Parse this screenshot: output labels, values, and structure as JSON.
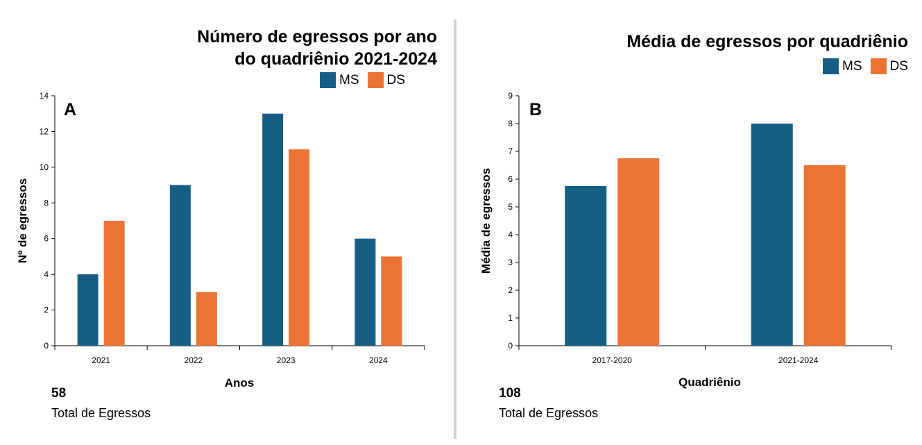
{
  "colors": {
    "ms": "#175e85",
    "ds": "#eb7434",
    "axis": "#000000"
  },
  "chart_data": [
    {
      "type": "bar",
      "panel_letter": "A",
      "title_lines": [
        "Número de egressos por ano",
        "do quadriênio 2021-2024"
      ],
      "xlabel": "Anos",
      "ylabel": "Nº de egressos",
      "categories": [
        "2021",
        "2022",
        "2023",
        "2024"
      ],
      "ylim": [
        0,
        14
      ],
      "yticks": [
        0,
        2,
        4,
        6,
        8,
        10,
        12,
        14
      ],
      "series": [
        {
          "name": "MS",
          "values": [
            4,
            9,
            13,
            6
          ]
        },
        {
          "name": "DS",
          "values": [
            7,
            3,
            11,
            5
          ]
        }
      ],
      "legend": [
        "MS",
        "DS"
      ],
      "total_value": "58",
      "total_label": "Total de Egressos"
    },
    {
      "type": "bar",
      "panel_letter": "B",
      "title_lines": [
        "Média de egressos por quadriênio"
      ],
      "xlabel": "Quadriênio",
      "ylabel": "Média de egressos",
      "categories": [
        "2017-2020",
        "2021-2024"
      ],
      "ylim": [
        0,
        9
      ],
      "yticks": [
        0,
        1,
        2,
        3,
        4,
        5,
        6,
        7,
        8,
        9
      ],
      "series": [
        {
          "name": "MS",
          "values": [
            5.75,
            8
          ]
        },
        {
          "name": "DS",
          "values": [
            6.75,
            6.5
          ]
        }
      ],
      "legend": [
        "MS",
        "DS"
      ],
      "total_value": "108",
      "total_label": "Total de Egressos"
    }
  ]
}
